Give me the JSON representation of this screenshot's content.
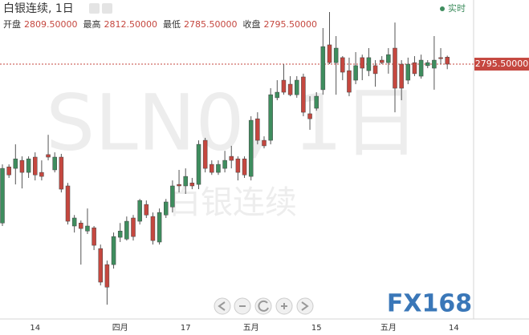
{
  "chart_data": {
    "type": "candlestick",
    "title": "白银连续, 1日",
    "live_label": "实时",
    "ohlc_header": [
      {
        "name": "开盘",
        "label": "2809.50000"
      },
      {
        "name": "最高",
        "label": "2812.50000"
      },
      {
        "name": "最低",
        "label": "2785.50000"
      },
      {
        "name": "收盘",
        "label": "2795.50000"
      }
    ],
    "watermark": "SLN0, 1日",
    "watermark_sub": "白银连续",
    "logo": "FX168",
    "up_color": "#3e8d5e",
    "down_color": "#c5473f",
    "ylim": [
      2287,
      2923.5
    ],
    "price_line": {
      "value": 2795.5,
      "label": "2795.50000"
    },
    "categories": [
      null,
      null,
      null,
      null,
      null,
      "14",
      null,
      null,
      null,
      null,
      null,
      null,
      null,
      null,
      null,
      null,
      null,
      null,
      "四月",
      null,
      null,
      null,
      null,
      null,
      null,
      null,
      null,
      null,
      "17",
      null,
      null,
      null,
      null,
      null,
      null,
      null,
      null,
      null,
      "五月",
      null,
      null,
      null,
      null,
      null,
      null,
      null,
      null,
      null,
      "15",
      null,
      null,
      null,
      null,
      null,
      null,
      null,
      null,
      null,
      null,
      "五月",
      null,
      null,
      null,
      null,
      null,
      null,
      null,
      null,
      null,
      "14",
      null
    ],
    "open": [
      2478.5,
      2590.5,
      2587.5,
      2603.5,
      2579.5,
      2610,
      2579.5,
      2615,
      2584.5,
      2610,
      2552.5,
      2472.5,
      2478.5,
      2462.5,
      2469,
      2427.5,
      2395.5,
      2395.5,
      2450,
      2446.5,
      2488.5,
      2482,
      2515.5,
      2491.5,
      2440.5,
      2494.5,
      2510.5,
      2555.5,
      2552.5,
      2558.5,
      2555.5,
      2643.5,
      2595.5,
      2579.5,
      2587.5,
      2611.5,
      2606.5,
      2606.5,
      2571.5,
      2686.5,
      2643.5,
      2643.5,
      2728.5,
      2763.5,
      2755.5,
      2734.5,
      2770,
      2696.5,
      2707.5,
      2744.5,
      2834,
      2798.5,
      2808.5,
      2782.5,
      2763.5,
      2808.5,
      2782.5,
      2792.5,
      2803.5,
      2798.5,
      2827.5,
      2795.5,
      2763.5,
      2798.5,
      2771.5,
      2792.5,
      2787.5,
      2808.5,
      2809.5,
      null,
      null
    ],
    "high": [
      2595.5,
      2595.5,
      2635.5,
      2611.5,
      2611.5,
      2619.5,
      2603.5,
      2654.5,
      2619.5,
      2616.5,
      2558.5,
      2494.5,
      2483.5,
      2507.5,
      2472.5,
      2435.5,
      2403.5,
      2459.5,
      2478.5,
      2491.5,
      2494.5,
      2526.5,
      2523.5,
      2499.5,
      2507.5,
      2526.5,
      2563.5,
      2584.5,
      2587.5,
      2568.5,
      2643.5,
      2648.5,
      2603.5,
      2603.5,
      2622.5,
      2632.5,
      2611.5,
      2611.5,
      2691.5,
      2699.5,
      2651.5,
      2747.5,
      2763.5,
      2795.5,
      2771.5,
      2771.5,
      2776.5,
      2731.5,
      2739.5,
      2867.5,
      2899.5,
      2851.5,
      2811.5,
      2808.5,
      2819.5,
      2814.5,
      2827.5,
      2803.5,
      2811.5,
      2827.5,
      2878.5,
      2803.5,
      2808.5,
      2811.5,
      2814.5,
      2803.5,
      2851.5,
      2827.5,
      2812.5,
      null,
      null
    ],
    "low": [
      2472.5,
      2568.5,
      2555.5,
      2547.5,
      2568.5,
      2563.5,
      2563.5,
      2603.5,
      2579.5,
      2539.5,
      2475.5,
      2459.5,
      2395.5,
      2456.5,
      2424.5,
      2354,
      2315.5,
      2387.5,
      2440.5,
      2443.5,
      2443.5,
      2475.5,
      2488.5,
      2435.5,
      2435.5,
      2488.5,
      2499.5,
      2539.5,
      2536.5,
      2546,
      2546,
      2579.5,
      2574.5,
      2574.5,
      2579.5,
      2587.5,
      2563.5,
      2568.5,
      2563.5,
      2635.5,
      2627.5,
      2635.5,
      2723.5,
      2734.5,
      2731.5,
      2728.5,
      2691.5,
      2664.5,
      2702.5,
      2734.5,
      2795.5,
      2734.5,
      2763.5,
      2731.5,
      2755.5,
      2763.5,
      2771.5,
      2750.5,
      2795.5,
      2776.5,
      2699.5,
      2723.5,
      2755.5,
      2771.5,
      2766.5,
      2787.5,
      2744.5,
      2795.5,
      2785.5,
      null,
      null
    ],
    "close": [
      2587.5,
      2574.5,
      2606.5,
      2579.5,
      2606.5,
      2574.5,
      2571.5,
      2610,
      2610,
      2546,
      2482,
      2488.5,
      2467.5,
      2472.5,
      2434,
      2360.5,
      2350.5,
      2451.5,
      2462.5,
      2482,
      2451.5,
      2523.5,
      2494.5,
      2443.5,
      2499.5,
      2520.5,
      2552.5,
      2552.5,
      2571.5,
      2552.5,
      2635.5,
      2587.5,
      2579.5,
      2595.5,
      2603.5,
      2603.5,
      2579.5,
      2574.5,
      2683.5,
      2643.5,
      2632.5,
      2734.5,
      2739.5,
      2739.5,
      2734.5,
      2763.5,
      2699.5,
      2686.5,
      2731.5,
      2830.5,
      2798.5,
      2827.5,
      2779.5,
      2739.5,
      2792.5,
      2787.5,
      2808.5,
      2776.5,
      2798.5,
      2814.5,
      2747.5,
      2747.5,
      2795.5,
      2776.5,
      2803.5,
      2798.5,
      2803.5,
      2806.5,
      2795.5,
      null,
      null
    ]
  }
}
